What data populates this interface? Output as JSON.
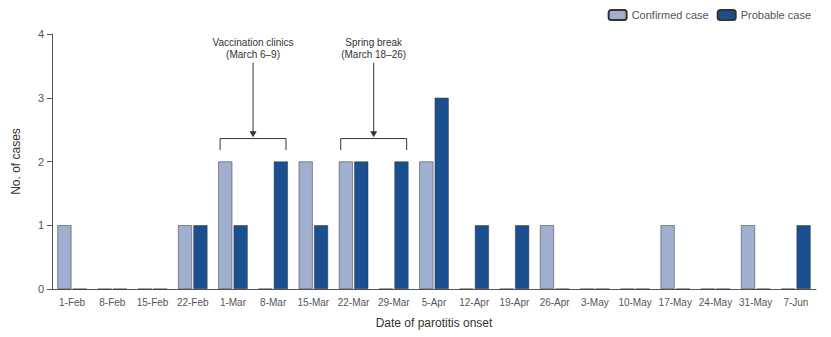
{
  "chart_data": {
    "type": "bar",
    "categories": [
      "1-Feb",
      "8-Feb",
      "15-Feb",
      "22-Feb",
      "1-Mar",
      "8-Mar",
      "15-Mar",
      "22-Mar",
      "29-Mar",
      "5-Apr",
      "12-Apr",
      "19-Apr",
      "26-Apr",
      "3-May",
      "10-May",
      "17-May",
      "24-May",
      "31-May",
      "7-Jun"
    ],
    "series": [
      {
        "name": "Confirmed case",
        "color": "#a0aed0",
        "values": [
          1,
          0,
          0,
          1,
          2,
          0,
          2,
          2,
          0,
          2,
          0,
          0,
          1,
          0,
          0,
          1,
          0,
          1,
          0
        ]
      },
      {
        "name": "Probable case",
        "color": "#1a5090",
        "values": [
          0,
          0,
          0,
          1,
          1,
          2,
          1,
          2,
          2,
          3,
          1,
          1,
          0,
          0,
          0,
          0,
          0,
          0,
          1
        ]
      }
    ],
    "xlabel": "Date of parotitis onset",
    "ylabel": "No. of cases",
    "ylim": [
      0,
      4
    ],
    "yticks": [
      0,
      1,
      2,
      3,
      4
    ],
    "grid": false,
    "legend": "upper right",
    "annotations": [
      {
        "text": "Vaccination clinics\n(March 6–9)",
        "categories": [
          "1-Mar",
          "8-Mar"
        ]
      },
      {
        "text": "Spring break\n(March 18–26)",
        "categories": [
          "22-Mar",
          "29-Mar"
        ]
      }
    ]
  }
}
